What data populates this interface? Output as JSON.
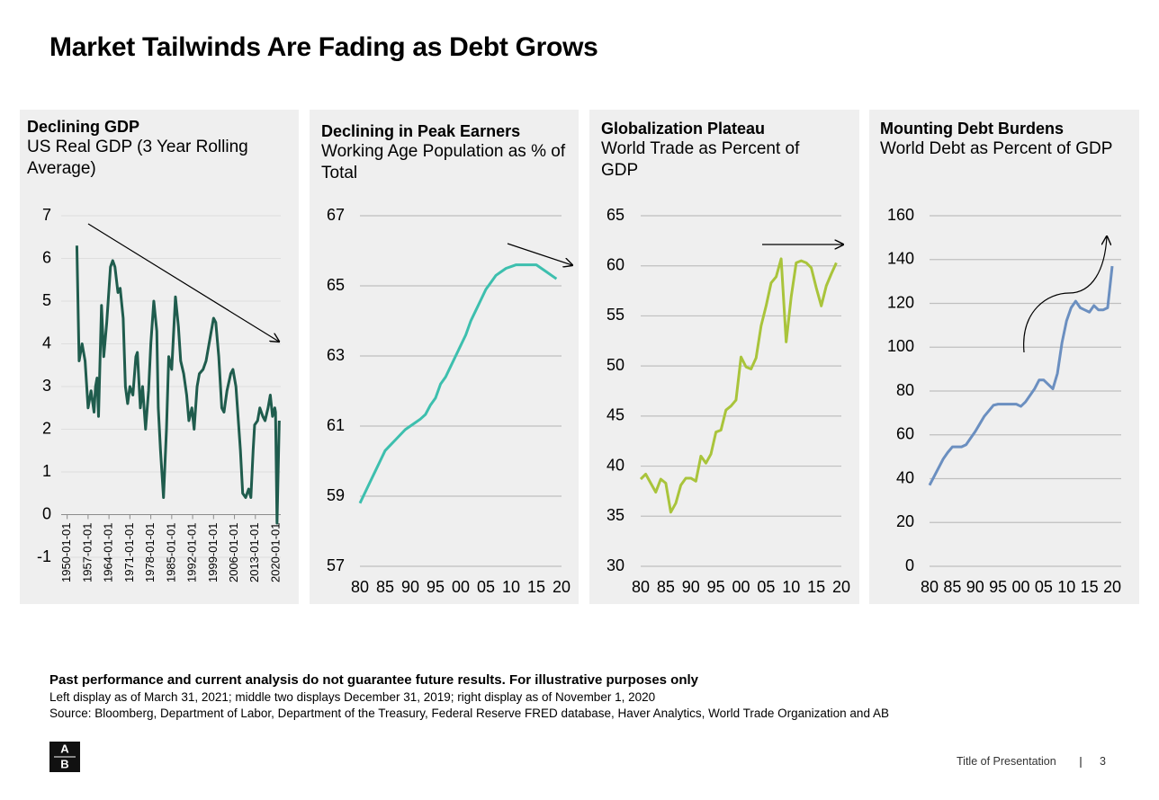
{
  "title": "Market Tailwinds Are Fading as Debt Grows",
  "chart_data": [
    {
      "type": "line",
      "title": "Declining GDP",
      "subtitle": "US Real GDP (3 Year Rolling Average)",
      "x": [
        "1953-04-01",
        "1954-01-01",
        "1955-01-01",
        "1956-01-01",
        "1957-01-01",
        "1958-01-01",
        "1959-01-01",
        "1959-07-01",
        "1960-01-01",
        "1960-07-01",
        "1961-07-01",
        "1962-04-01",
        "1963-04-01",
        "1964-07-01",
        "1965-04-01",
        "1966-01-01",
        "1967-01-01",
        "1967-10-01",
        "1968-10-01",
        "1969-07-01",
        "1970-04-01",
        "1971-01-01",
        "1972-01-01",
        "1973-01-01",
        "1973-07-01",
        "1974-07-01",
        "1975-04-01",
        "1976-04-01",
        "1977-04-01",
        "1978-01-01",
        "1979-01-01",
        "1980-01-01",
        "1980-07-01",
        "1981-04-01",
        "1982-04-01",
        "1983-04-01",
        "1984-01-01",
        "1985-01-01",
        "1986-04-01",
        "1987-04-01",
        "1988-01-01",
        "1989-01-01",
        "1990-01-01",
        "1990-10-01",
        "1991-10-01",
        "1992-07-01",
        "1993-07-01",
        "1994-04-01",
        "1995-07-01",
        "1996-07-01",
        "1997-10-01",
        "1999-01-01",
        "1999-10-01",
        "2000-10-01",
        "2001-10-01",
        "2002-07-01",
        "2003-07-01",
        "2004-10-01",
        "2005-07-01",
        "2006-07-01",
        "2007-01-01",
        "2008-01-01",
        "2008-10-01",
        "2009-10-01",
        "2010-10-01",
        "2011-07-01",
        "2012-04-01",
        "2012-10-01",
        "2013-10-01",
        "2014-07-01",
        "2015-07-01",
        "2016-04-01",
        "2017-04-01",
        "2018-01-01",
        "2018-10-01",
        "2019-07-01",
        "2019-10-01",
        "2020-04-01",
        "2021-01-01"
      ],
      "values": [
        6.3,
        3.6,
        4.0,
        3.6,
        2.5,
        2.9,
        2.4,
        3.0,
        3.2,
        2.3,
        4.9,
        3.7,
        4.5,
        5.8,
        5.95,
        5.8,
        5.2,
        5.3,
        4.6,
        3.0,
        2.6,
        3.0,
        2.8,
        3.7,
        3.8,
        2.5,
        3.0,
        2.0,
        2.9,
        4.0,
        5.0,
        4.3,
        2.5,
        1.5,
        0.4,
        2.0,
        3.7,
        3.4,
        5.1,
        4.4,
        3.6,
        3.3,
        2.8,
        2.2,
        2.5,
        2.0,
        3.0,
        3.3,
        3.4,
        3.6,
        4.1,
        4.6,
        4.5,
        3.7,
        2.5,
        2.4,
        2.9,
        3.3,
        3.4,
        3.0,
        2.5,
        1.5,
        0.5,
        0.4,
        0.6,
        0.4,
        1.5,
        2.1,
        2.2,
        2.5,
        2.3,
        2.2,
        2.5,
        2.8,
        2.3,
        2.5,
        2.4,
        -0.2,
        2.2
      ],
      "color": "#1f5c4d",
      "xlim": [
        "1948-01-01",
        "2021-07-01"
      ],
      "xticks": [
        "1950-01-01",
        "1957-01-01",
        "1964-01-01",
        "1971-01-01",
        "1978-01-01",
        "1985-01-01",
        "1992-01-01",
        "1999-01-01",
        "2006-01-01",
        "2013-01-01",
        "2020-01-01"
      ],
      "ylim": [
        -1,
        7
      ],
      "yticks": [
        -1,
        0,
        1,
        2,
        3,
        4,
        5,
        6,
        7
      ],
      "grid": true
    },
    {
      "type": "line",
      "title": "Declining in Peak Earners",
      "subtitle": "Working Age Population as % of Total",
      "x": [
        1980,
        1981,
        1982,
        1983,
        1984,
        1985,
        1986,
        1987,
        1988,
        1989,
        1990,
        1991,
        1992,
        1993,
        1994,
        1995,
        1996,
        1997,
        1998,
        1999,
        2000,
        2001,
        2002,
        2003,
        2004,
        2005,
        2006,
        2007,
        2008,
        2009,
        2010,
        2011,
        2012,
        2013,
        2014,
        2015,
        2016,
        2017,
        2018,
        2019
      ],
      "values": [
        58.8,
        59.1,
        59.4,
        59.7,
        60.0,
        60.3,
        60.45,
        60.6,
        60.75,
        60.9,
        61.0,
        61.1,
        61.2,
        61.33,
        61.6,
        61.8,
        62.2,
        62.4,
        62.7,
        63.0,
        63.3,
        63.6,
        64.0,
        64.3,
        64.6,
        64.9,
        65.1,
        65.3,
        65.4,
        65.5,
        65.55,
        65.6,
        65.6,
        65.6,
        65.6,
        65.6,
        65.5,
        65.4,
        65.3,
        65.2
      ],
      "color": "#3dbfae",
      "xlim": [
        1980,
        2020
      ],
      "xticks": [
        {
          "value": 1980,
          "label": "80"
        },
        {
          "value": 1985,
          "label": "85"
        },
        {
          "value": 1990,
          "label": "90"
        },
        {
          "value": 1995,
          "label": "95"
        },
        {
          "value": 2000,
          "label": "00"
        },
        {
          "value": 2005,
          "label": "05"
        },
        {
          "value": 2010,
          "label": "10"
        },
        {
          "value": 2015,
          "label": "15"
        },
        {
          "value": 2020,
          "label": "20"
        }
      ],
      "ylim": [
        57,
        67
      ],
      "yticks": [
        57,
        59,
        61,
        63,
        65,
        67
      ],
      "grid": true
    },
    {
      "type": "line",
      "title": "Globalization Plateau",
      "subtitle": "World Trade as Percent of GDP",
      "x": [
        1980,
        1981,
        1982,
        1983,
        1984,
        1985,
        1986,
        1987,
        1988,
        1989,
        1990,
        1991,
        1992,
        1993,
        1994,
        1995,
        1996,
        1997,
        1998,
        1999,
        2000,
        2001,
        2002,
        2003,
        2004,
        2005,
        2006,
        2007,
        2008,
        2009,
        2010,
        2011,
        2012,
        2013,
        2014,
        2015,
        2016,
        2017,
        2018,
        2019
      ],
      "values": [
        38.7,
        39.2,
        38.3,
        37.4,
        38.7,
        38.3,
        35.4,
        36.3,
        38.1,
        38.8,
        38.8,
        38.5,
        41.0,
        40.3,
        41.2,
        43.4,
        43.6,
        45.6,
        46.0,
        46.6,
        50.9,
        49.9,
        49.7,
        50.8,
        54.0,
        56.0,
        58.3,
        58.9,
        60.7,
        52.4,
        56.9,
        60.3,
        60.5,
        60.3,
        59.8,
        57.8,
        56.0,
        58.0,
        59.2,
        60.3
      ],
      "color": "#a9c43b",
      "xlim": [
        1980,
        2020
      ],
      "xticks": [
        {
          "value": 1980,
          "label": "80"
        },
        {
          "value": 1985,
          "label": "85"
        },
        {
          "value": 1990,
          "label": "90"
        },
        {
          "value": 1995,
          "label": "95"
        },
        {
          "value": 2000,
          "label": "00"
        },
        {
          "value": 2005,
          "label": "05"
        },
        {
          "value": 2010,
          "label": "10"
        },
        {
          "value": 2015,
          "label": "15"
        },
        {
          "value": 2020,
          "label": "20"
        }
      ],
      "ylim": [
        30,
        65
      ],
      "yticks": [
        30,
        35,
        40,
        45,
        50,
        55,
        60,
        65
      ],
      "grid": true
    },
    {
      "type": "line",
      "title": "Mounting Debt Burdens",
      "subtitle": "World Debt as Percent of GDP",
      "x": [
        1980,
        1981,
        1982,
        1983,
        1984,
        1985,
        1986,
        1987,
        1988,
        1989,
        1990,
        1991,
        1992,
        1993,
        1994,
        1995,
        1996,
        1997,
        1998,
        1999,
        2000,
        2001,
        2002,
        2003,
        2004,
        2005,
        2006,
        2007,
        2008,
        2009,
        2010,
        2011,
        2012,
        2013,
        2014,
        2015,
        2016,
        2017,
        2018,
        2019,
        2020
      ],
      "values": [
        37,
        41,
        45,
        49,
        52,
        54.5,
        54.5,
        54.5,
        55.5,
        58.5,
        61.5,
        65,
        68.5,
        71,
        73.5,
        74,
        74,
        74,
        74,
        74,
        73,
        75,
        78,
        81,
        85,
        85,
        83,
        81,
        88,
        102,
        112,
        118,
        121,
        118,
        117,
        116,
        119,
        117,
        117,
        118,
        137
      ],
      "color": "#6b8fc0",
      "xlim": [
        1980,
        2020
      ],
      "xticks": [
        {
          "value": 1980,
          "label": "80"
        },
        {
          "value": 1985,
          "label": "85"
        },
        {
          "value": 1990,
          "label": "90"
        },
        {
          "value": 1995,
          "label": "95"
        },
        {
          "value": 2000,
          "label": "00"
        },
        {
          "value": 2005,
          "label": "05"
        },
        {
          "value": 2010,
          "label": "10"
        },
        {
          "value": 2015,
          "label": "15"
        },
        {
          "value": 2020,
          "label": "20"
        }
      ],
      "ylim": [
        0,
        160
      ],
      "yticks": [
        0,
        20,
        40,
        60,
        80,
        100,
        120,
        140,
        160
      ],
      "grid": true
    }
  ],
  "notes": {
    "disclaimer": "Past performance and current analysis do not guarantee future results. For illustrative purposes only",
    "lines": [
      "Left display as of March 31, 2021; middle two displays December 31, 2019; right display as of November 1, 2020",
      "Source: Bloomberg, Department of Labor, Department of the Treasury, Federal Reserve FRED database, Haver Analytics, World Trade Organization and AB"
    ]
  },
  "logo": {
    "top": "A",
    "bottom": "B"
  },
  "footer": {
    "presentation": "Title of Presentation",
    "page": 3
  }
}
